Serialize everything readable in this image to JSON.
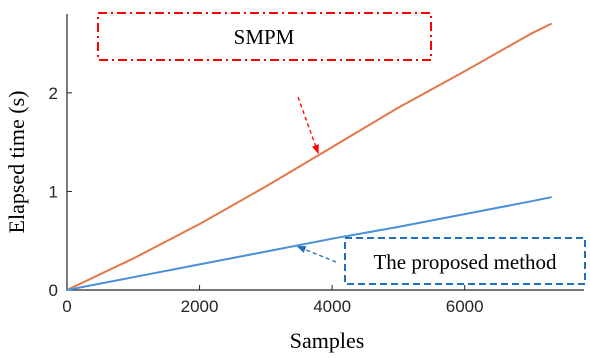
{
  "chart_data": {
    "type": "line",
    "xlabel": "Samples",
    "ylabel": "Elapsed time (s)",
    "xlim": [
      0,
      7800
    ],
    "ylim": [
      0,
      2.8
    ],
    "xticks": [
      0,
      2000,
      4000,
      6000
    ],
    "yticks": [
      0,
      1,
      2
    ],
    "xtick_labels": [
      "0",
      "2000",
      "4000",
      "6000"
    ],
    "ytick_labels": [
      "0",
      "1",
      "2"
    ],
    "grid": false,
    "series": [
      {
        "name": "SMPM",
        "color": "#E2774A",
        "x": [
          0,
          1000,
          2000,
          3000,
          4000,
          5000,
          6000,
          7000,
          7300
        ],
        "y": [
          0,
          0.32,
          0.67,
          1.05,
          1.45,
          1.85,
          2.22,
          2.6,
          2.7
        ]
      },
      {
        "name": "The proposed method",
        "color": "#4A90D9",
        "x": [
          0,
          1000,
          2000,
          3000,
          4000,
          5000,
          6000,
          7000,
          7300
        ],
        "y": [
          0,
          0.13,
          0.26,
          0.39,
          0.52,
          0.64,
          0.77,
          0.9,
          0.94
        ]
      }
    ],
    "annotations": [
      {
        "text": "SMPM",
        "series": 0,
        "color": "#FF0000",
        "box_style": "dash-dot",
        "arrow_style": "dashed",
        "points_to_x": 3800
      },
      {
        "text": "The proposed method",
        "series": 1,
        "color": "#1F6FBF",
        "box_style": "dashed",
        "arrow_style": "dashed",
        "points_to_x": 3450
      }
    ]
  }
}
